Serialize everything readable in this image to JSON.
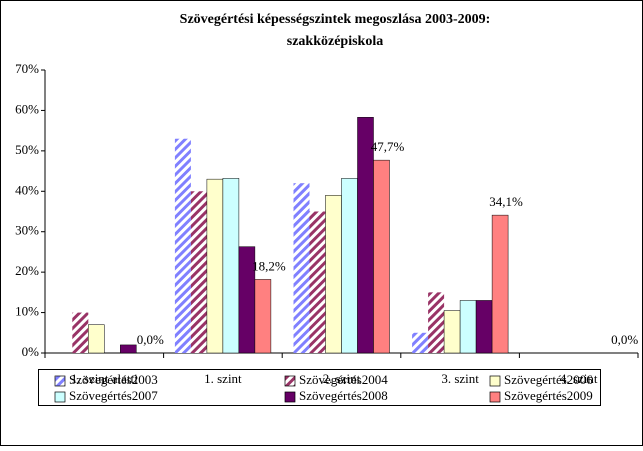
{
  "chart_data": {
    "type": "bar",
    "title": [
      "Szövegértési képességszintek megoszlása 2003-2009:",
      "szakközépiskola"
    ],
    "categories": [
      "1. szint alatti",
      "1. szint",
      "2. szint",
      "3. szint",
      "4. szint"
    ],
    "series": [
      {
        "name": "Szövegértés2003",
        "color": "#8080ff",
        "pattern": "hatch",
        "values": [
          0,
          53,
          42,
          5,
          0
        ]
      },
      {
        "name": "Szövegértés2004",
        "color": "#993366",
        "pattern": "hatch",
        "values": [
          10,
          40,
          35,
          15,
          0
        ]
      },
      {
        "name": "Szövegértés2006",
        "color": "#ffffcc",
        "values": [
          7,
          43,
          39,
          10.5,
          0
        ]
      },
      {
        "name": "Szövegértés2007",
        "color": "#ccffff",
        "values": [
          0,
          43.2,
          43.2,
          13,
          0
        ]
      },
      {
        "name": "Szövegértés2008",
        "color": "#660066",
        "values": [
          2,
          26.3,
          58.3,
          13,
          0
        ]
      },
      {
        "name": "Szövegértés2009",
        "color": "#ff8080",
        "values": [
          0,
          18.2,
          47.7,
          34.1,
          0
        ],
        "value_labels": [
          "0,0%",
          "18,2%",
          "47,7%",
          "34,1%",
          "0,0%"
        ]
      }
    ],
    "ylim": [
      0,
      70
    ],
    "yticks": [
      {
        "value": 0,
        "label": "0%"
      },
      {
        "value": 10,
        "label": "10%"
      },
      {
        "value": 20,
        "label": "20%"
      },
      {
        "value": 30,
        "label": "30%"
      },
      {
        "value": 40,
        "label": "40%"
      },
      {
        "value": 50,
        "label": "50%"
      },
      {
        "value": 60,
        "label": "60%"
      },
      {
        "value": 70,
        "label": "70%"
      }
    ],
    "grid": false,
    "legend": "bottom"
  }
}
